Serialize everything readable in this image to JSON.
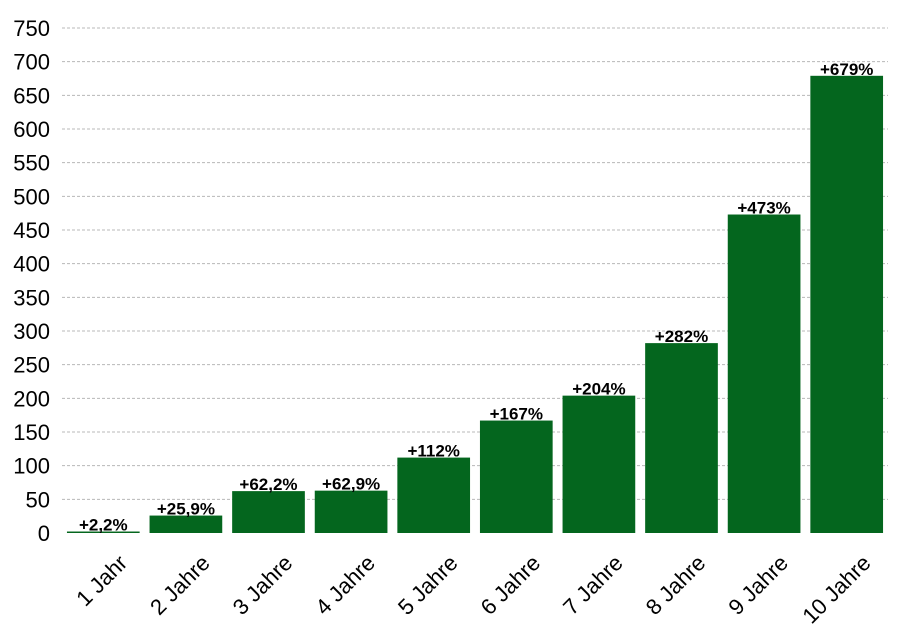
{
  "chart_data": {
    "type": "bar",
    "title": "",
    "xlabel": "",
    "ylabel": "",
    "categories": [
      "1 Jahr",
      "2 Jahre",
      "3 Jahre",
      "4 Jahre",
      "5 Jahre",
      "6 Jahre",
      "7 Jahre",
      "8 Jahre",
      "9 Jahre",
      "10 Jahre"
    ],
    "values": [
      2.2,
      25.9,
      62.2,
      62.9,
      112,
      167,
      204,
      282,
      473,
      679
    ],
    "data_labels": [
      "+2,2%",
      "+25,9%",
      "+62,2%",
      "+62,9%",
      "+112%",
      "+167%",
      "+204%",
      "+282%",
      "+473%",
      "+679%"
    ],
    "ylim": [
      0,
      750
    ],
    "yticks": [
      0,
      50,
      100,
      150,
      200,
      250,
      300,
      350,
      400,
      450,
      500,
      550,
      600,
      650,
      700,
      750
    ],
    "grid": true,
    "legend": "none",
    "bar_color": "#04661e"
  }
}
